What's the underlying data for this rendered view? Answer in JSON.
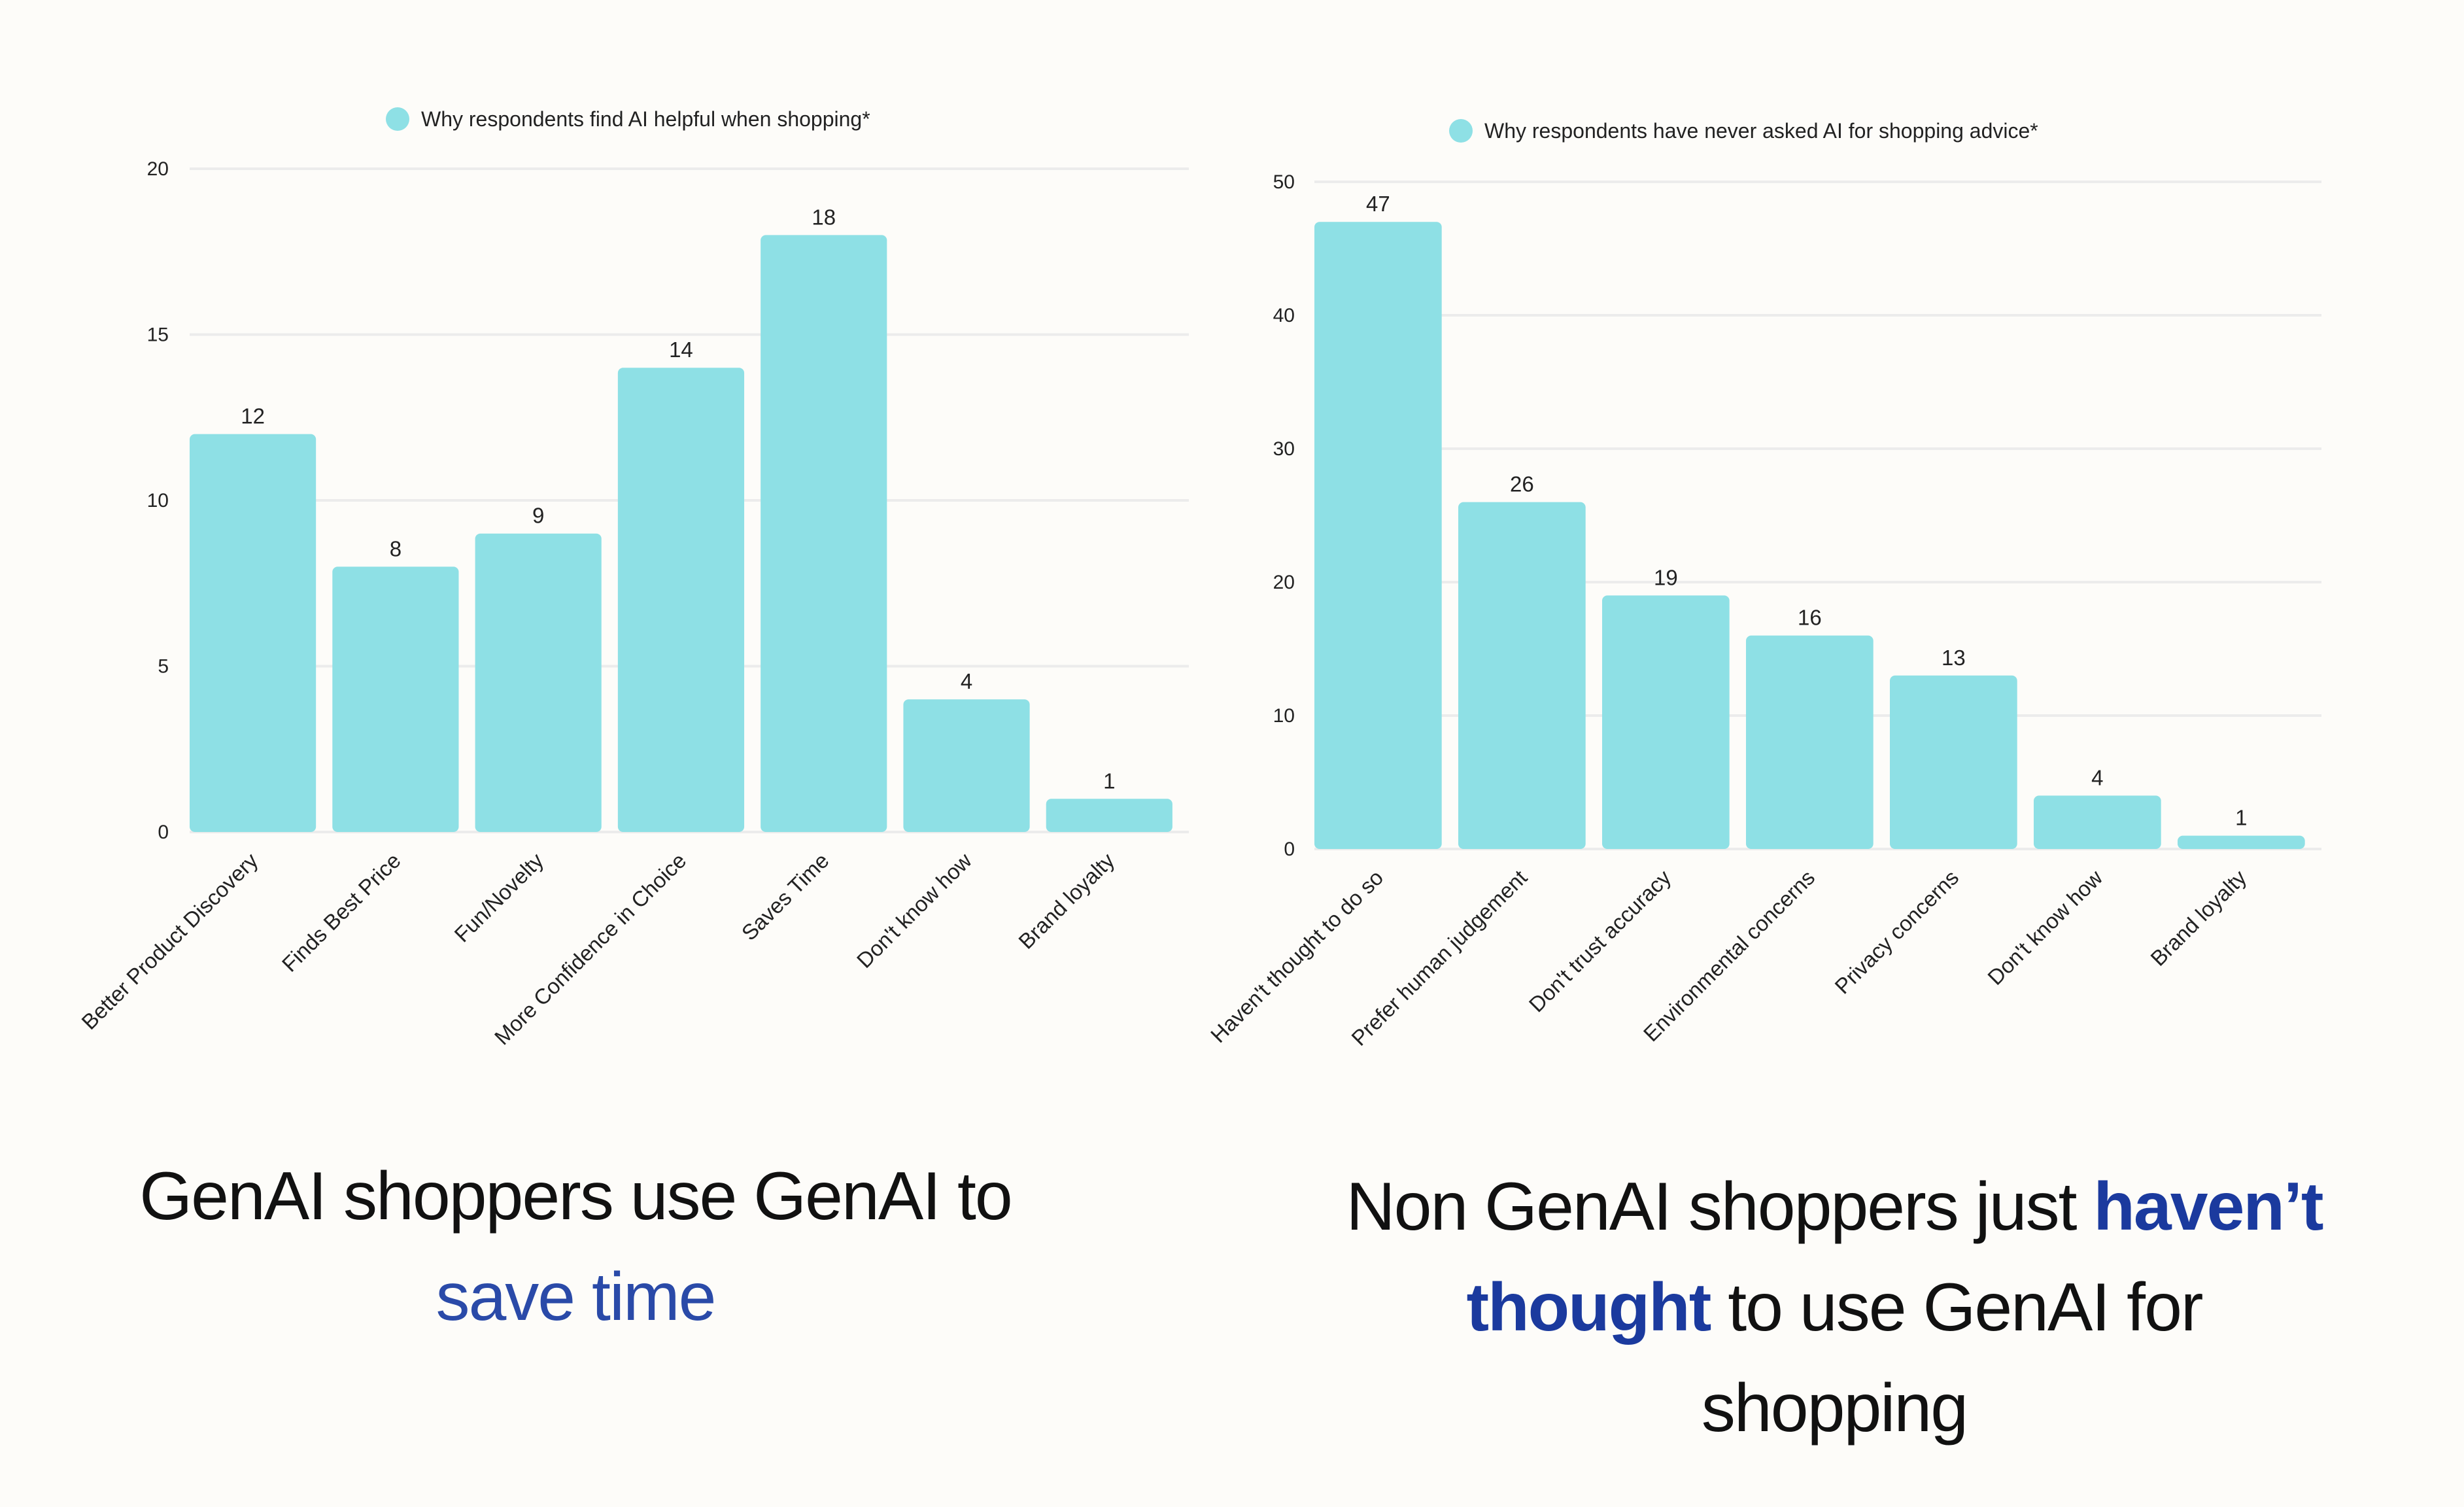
{
  "chart_data": [
    {
      "type": "bar",
      "legend": "Why respondents find AI helpful when shopping*",
      "categories": [
        "Better Product Discovery",
        "Finds Best Price",
        "Fun/Novelty",
        "More Confidence in Choice",
        "Saves Time",
        "Don't know how",
        "Brand loyalty"
      ],
      "values": [
        12,
        8,
        9,
        14,
        18,
        4,
        1
      ],
      "ylim": [
        0,
        20
      ],
      "yticks": [
        0,
        5,
        10,
        15,
        20
      ],
      "color": "#8ee0e5"
    },
    {
      "type": "bar",
      "legend": "Why respondents have never asked AI for shopping advice*",
      "categories": [
        "Haven't thought to do so",
        "Prefer human judgement",
        "Don't trust accuracy",
        "Environmental concerns",
        "Privacy concerns",
        "Don't know how",
        "Brand loyalty"
      ],
      "values": [
        47,
        26,
        19,
        16,
        13,
        4,
        1
      ],
      "ylim": [
        0,
        50
      ],
      "yticks": [
        0,
        10,
        20,
        30,
        40,
        50
      ],
      "color": "#8ee0e5"
    }
  ],
  "captions": {
    "left": {
      "line1": "GenAI shoppers use GenAI to",
      "highlight": "save time"
    },
    "right": {
      "line1_prefix": "Non GenAI shoppers just ",
      "highlight_a": "haven’t",
      "highlight_b": "thought",
      "line2_suffix": " to use GenAI for",
      "line3": "shopping"
    }
  }
}
